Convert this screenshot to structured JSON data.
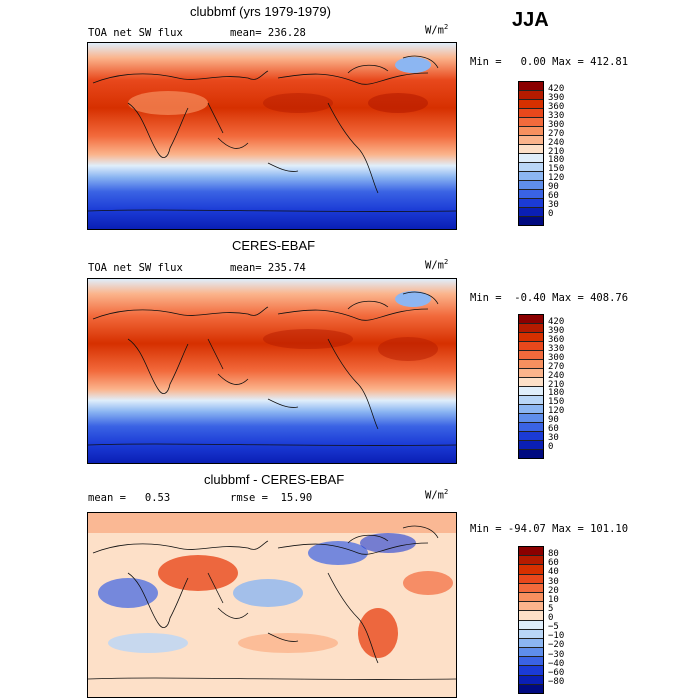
{
  "season": "JJA",
  "panels": [
    {
      "title": "clubbmf (yrs 1979-1979)",
      "variable": "TOA net SW flux",
      "stat_left": "mean= 236.28",
      "stat_right": "",
      "units": "W/m",
      "units_exp": "2",
      "min_max": "Min =   0.00 Max = 412.81",
      "colorbar": {
        "labels": [
          "420",
          "390",
          "360",
          "330",
          "300",
          "270",
          "240",
          "210",
          "180",
          "150",
          "120",
          "90",
          "60",
          "30",
          "0"
        ],
        "colors": [
          "#8b0000",
          "#b51b00",
          "#d63000",
          "#e8481c",
          "#f26a3c",
          "#f7905f",
          "#fbb48c",
          "#fde0c8",
          "#dfeefb",
          "#b9d6f7",
          "#8cb6f2",
          "#5f8eeb",
          "#3a63e4",
          "#1b3bd6",
          "#0a1fb5",
          "#000a80"
        ]
      }
    },
    {
      "title": "CERES-EBAF",
      "variable": "TOA net SW flux",
      "stat_left": "mean= 235.74",
      "stat_right": "",
      "units": "W/m",
      "units_exp": "2",
      "min_max": "Min =  -0.40 Max = 408.76",
      "colorbar": {
        "labels": [
          "420",
          "390",
          "360",
          "330",
          "300",
          "270",
          "240",
          "210",
          "180",
          "150",
          "120",
          "90",
          "60",
          "30",
          "0"
        ],
        "colors": [
          "#8b0000",
          "#b51b00",
          "#d63000",
          "#e8481c",
          "#f26a3c",
          "#f7905f",
          "#fbb48c",
          "#fde0c8",
          "#dfeefb",
          "#b9d6f7",
          "#8cb6f2",
          "#5f8eeb",
          "#3a63e4",
          "#1b3bd6",
          "#0a1fb5",
          "#000a80"
        ]
      }
    },
    {
      "title": "clubbmf - CERES-EBAF",
      "variable": "",
      "stat_left": "mean =   0.53",
      "stat_right": "rmse =  15.90",
      "units": "W/m",
      "units_exp": "2",
      "min_max": "Min = -94.07 Max = 101.10",
      "colorbar": {
        "labels": [
          "80",
          "60",
          "40",
          "30",
          "20",
          "10",
          "5",
          "0",
          "−5",
          "−10",
          "−20",
          "−30",
          "−40",
          "−60",
          "−80"
        ],
        "colors": [
          "#8b0000",
          "#b51b00",
          "#d63000",
          "#e8481c",
          "#f26a3c",
          "#f7905f",
          "#fbb48c",
          "#fde0c8",
          "#dfeefb",
          "#b9d6f7",
          "#8cb6f2",
          "#5f8eeb",
          "#3a63e4",
          "#1b3bd6",
          "#0a1fb5",
          "#000a80"
        ]
      }
    }
  ]
}
